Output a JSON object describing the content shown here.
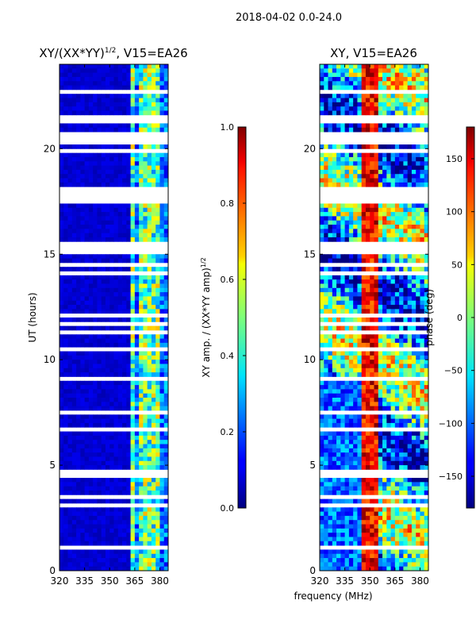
{
  "chart_data": {
    "type": "heatmap",
    "title": "2018-04-02 0.0-24.0",
    "xlabel": "frequency (MHz)",
    "panels": [
      {
        "id": "amp",
        "title_main": "XY/(XX*YY)",
        "title_sup": "1/2",
        "title_tail": ", V15=EA26",
        "ylabel": "UT (hours)",
        "xlim": [
          320,
          385
        ],
        "ylim": [
          0,
          24
        ],
        "xticks": [
          "320",
          "335",
          "350",
          "365",
          "380"
        ],
        "xtick_values": [
          320,
          335,
          350,
          365,
          380
        ],
        "yticks": [
          "0",
          "5",
          "10",
          "15",
          "20"
        ],
        "ytick_values": [
          0,
          5,
          10,
          15,
          20
        ],
        "colorbar": {
          "label": "XY amp. / (XX*YY amp)",
          "label_sup": "1/2",
          "range": [
            0.0,
            1.0
          ],
          "ticks": [
            "0.0",
            "0.2",
            "0.4",
            "0.6",
            "0.8",
            "1.0"
          ],
          "tick_values": [
            0.0,
            0.2,
            0.4,
            0.6,
            0.8,
            1.0
          ]
        }
      },
      {
        "id": "phase",
        "title_main": "XY, V15=EA26",
        "ylabel": "",
        "xlim": [
          320,
          385
        ],
        "ylim": [
          0,
          24
        ],
        "xticks": [
          "320",
          "335",
          "350",
          "365",
          "380"
        ],
        "xtick_values": [
          320,
          335,
          350,
          365,
          380
        ],
        "yticks": [
          "0",
          "5",
          "10",
          "15",
          "20"
        ],
        "ytick_values": [
          0,
          5,
          10,
          15,
          20
        ],
        "colorbar": {
          "label": "phase (deg)",
          "range": [
            -180,
            180
          ],
          "ticks": [
            "−150",
            "−100",
            "−50",
            "0",
            "50",
            "100",
            "150"
          ],
          "tick_values": [
            -150,
            -100,
            -50,
            0,
            50,
            100,
            150
          ]
        }
      }
    ],
    "data_gaps_hours": [
      [
        17.6,
        18.2
      ],
      [
        20.2,
        20.6
      ],
      [
        21.3,
        21.7
      ],
      [
        15.1,
        15.6
      ],
      [
        4.45,
        4.55
      ]
    ],
    "bright_channels_MHz": [
      364,
      368,
      372,
      375,
      379
    ]
  }
}
